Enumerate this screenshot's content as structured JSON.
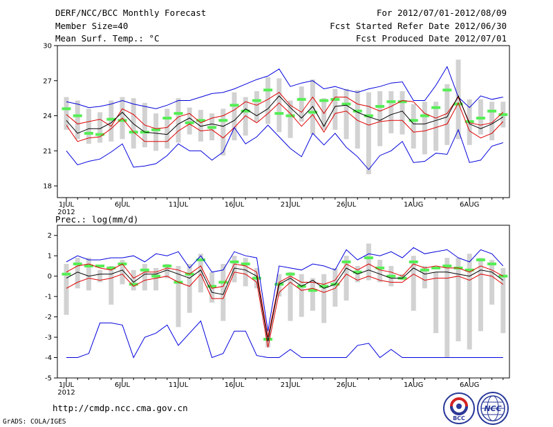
{
  "header": {
    "title": "DERF/NCC/BCC Monthly Forecast",
    "member_size": "Member Size=40",
    "variable": "Mean Surf. Temp.: °C",
    "period": "For 2012/07/01-2012/08/09",
    "started": "Fcst Started Refer Date 2012/06/30",
    "produced": "Fcst Produced Date 2012/07/01"
  },
  "footer": {
    "url": "http://cmdp.ncc.cma.gov.cn",
    "credit": "GrADS: COLA/IGES",
    "logo1_text": "BCC",
    "logo2_text": "NCC"
  },
  "colors": {
    "box": "#d2d2d2",
    "median": "#55ee55",
    "mean": "#000000",
    "inner": "#dd0000",
    "outer": "#0000dd"
  },
  "chart_data": [
    {
      "type": "line",
      "name": "temperature",
      "title": "Mean Surf. Temp.: °C",
      "xlabel": "",
      "ylabel": "",
      "x_tick_labels": [
        "1JUL",
        "6JUL",
        "11JUL",
        "16JUL",
        "21JUL",
        "26JUL",
        "1AUG",
        "6AUG"
      ],
      "x_tick_days": [
        1,
        6,
        11,
        16,
        21,
        26,
        32,
        37
      ],
      "x_sub_label": "2012",
      "ylim": [
        17,
        30
      ],
      "y_ticks": [
        18,
        21,
        24,
        27,
        30
      ],
      "days": [
        1,
        2,
        3,
        4,
        5,
        6,
        7,
        8,
        9,
        10,
        11,
        12,
        13,
        14,
        15,
        16,
        17,
        18,
        19,
        20,
        21,
        22,
        23,
        24,
        25,
        26,
        27,
        28,
        29,
        30,
        31,
        32,
        33,
        34,
        35,
        36,
        37,
        38,
        39,
        40
      ],
      "box_low": [
        22.8,
        22.0,
        21.6,
        21.7,
        21.8,
        22.0,
        21.2,
        21.3,
        21.0,
        21.2,
        21.7,
        22.4,
        21.8,
        21.9,
        20.6,
        21.9,
        22.3,
        23.5,
        23.3,
        22.6,
        22.1,
        23.5,
        22.4,
        22.8,
        22.8,
        22.0,
        21.2,
        19.0,
        21.4,
        22.5,
        22.4,
        21.2,
        20.7,
        21.0,
        21.5,
        22.0,
        21.5,
        22.4,
        21.9,
        23.0
      ],
      "box_high": [
        25.6,
        25.3,
        24.6,
        24.3,
        25.3,
        25.6,
        25.5,
        25.1,
        24.2,
        24.6,
        25.5,
        24.7,
        24.5,
        24.2,
        24.6,
        26.0,
        25.6,
        26.1,
        27.3,
        27.2,
        25.3,
        26.5,
        27.1,
        25.5,
        26.3,
        26.3,
        26.2,
        26.0,
        26.1,
        26.1,
        26.1,
        25.0,
        25.2,
        25.2,
        26.7,
        28.8,
        25.4,
        25.4,
        25.2,
        25.2
      ],
      "median": [
        24.6,
        24.0,
        22.5,
        22.4,
        23.7,
        23.6,
        22.6,
        22.6,
        22.8,
        23.8,
        24.2,
        23.4,
        23.6,
        23.0,
        23.6,
        24.9,
        24.4,
        25.3,
        26.2,
        24.2,
        24.0,
        25.4,
        24.3,
        25.3,
        25.4,
        25.0,
        24.4,
        24.0,
        24.8,
        25.2,
        25.2,
        23.6,
        24.0,
        24.7,
        26.2,
        25.0,
        23.5,
        23.8,
        24.4,
        24.1
      ],
      "series": [
        {
          "name": "max",
          "role": "outer",
          "values": [
            25.2,
            25.0,
            24.7,
            24.8,
            25.0,
            25.3,
            25.0,
            24.8,
            24.6,
            24.9,
            25.3,
            25.3,
            25.6,
            25.9,
            26.0,
            26.3,
            26.7,
            27.1,
            27.4,
            28.0,
            26.5,
            26.8,
            27.0,
            26.3,
            26.5,
            26.2,
            26.0,
            26.3,
            26.5,
            26.8,
            26.9,
            25.3,
            25.3,
            26.6,
            28.2,
            25.6,
            24.7,
            25.7,
            25.4,
            25.6
          ]
        },
        {
          "name": "p75",
          "role": "inner",
          "values": [
            24.1,
            23.3,
            23.5,
            23.7,
            23.1,
            24.6,
            24.1,
            23.2,
            22.9,
            23.0,
            23.9,
            24.2,
            23.4,
            23.8,
            24.0,
            24.5,
            25.2,
            24.9,
            25.4,
            26.0,
            24.9,
            24.3,
            25.6,
            24.2,
            25.6,
            25.6,
            25.0,
            24.8,
            24.4,
            24.8,
            25.3,
            25.2,
            24.2,
            23.8,
            24.2,
            25.6,
            23.4,
            23.2,
            23.4,
            24.3
          ]
        },
        {
          "name": "mean",
          "role": "mean",
          "values": [
            23.6,
            22.5,
            22.9,
            22.9,
            23.4,
            24.3,
            23.3,
            22.6,
            22.5,
            22.4,
            23.3,
            23.8,
            23.1,
            23.3,
            23.1,
            23.6,
            24.6,
            24.0,
            24.6,
            25.7,
            24.7,
            23.8,
            24.8,
            23.1,
            24.8,
            24.9,
            24.3,
            23.9,
            23.6,
            24.1,
            24.4,
            23.3,
            23.3,
            23.6,
            23.9,
            25.7,
            23.3,
            22.9,
            23.3,
            23.9
          ]
        },
        {
          "name": "p25",
          "role": "inner",
          "values": [
            23.2,
            21.8,
            22.1,
            22.2,
            22.9,
            23.8,
            22.6,
            21.8,
            21.8,
            21.8,
            22.7,
            23.3,
            22.7,
            22.8,
            22.1,
            23.0,
            24.0,
            23.4,
            24.2,
            25.1,
            24.2,
            23.1,
            24.1,
            22.6,
            24.2,
            24.4,
            23.6,
            23.2,
            23.5,
            23.6,
            23.6,
            22.6,
            22.7,
            23.0,
            23.3,
            25.1,
            22.7,
            22.1,
            22.5,
            23.5
          ]
        },
        {
          "name": "min",
          "role": "outer",
          "values": [
            21.0,
            19.8,
            20.1,
            20.3,
            20.9,
            21.6,
            19.6,
            19.7,
            19.9,
            20.6,
            21.6,
            21.0,
            21.0,
            20.2,
            20.9,
            23.0,
            21.6,
            22.2,
            23.2,
            22.2,
            21.2,
            20.5,
            22.5,
            21.5,
            22.5,
            21.3,
            20.5,
            19.4,
            20.6,
            21.0,
            21.8,
            20.0,
            20.1,
            20.8,
            20.7,
            22.8,
            20.0,
            20.2,
            21.4,
            21.7
          ]
        }
      ]
    },
    {
      "type": "line",
      "name": "precipitation",
      "title": "Prec.: log(mm/d)",
      "xlabel": "",
      "ylabel": "",
      "x_tick_labels": [
        "1JUL",
        "6JUL",
        "11JUL",
        "16JUL",
        "21JUL",
        "26JUL",
        "1AUG",
        "6AUG"
      ],
      "x_tick_days": [
        1,
        6,
        11,
        16,
        21,
        26,
        32,
        37
      ],
      "x_sub_label": "2012",
      "ylim": [
        -5,
        2.5
      ],
      "y_ticks": [
        -5,
        -4,
        -3,
        -2,
        -1,
        0,
        1,
        2
      ],
      "days": [
        1,
        2,
        3,
        4,
        5,
        6,
        7,
        8,
        9,
        10,
        11,
        12,
        13,
        14,
        15,
        16,
        17,
        18,
        19,
        20,
        21,
        22,
        23,
        24,
        25,
        26,
        27,
        28,
        29,
        30,
        31,
        32,
        33,
        34,
        35,
        36,
        37,
        38,
        39,
        40
      ],
      "box_low": [
        -1.9,
        -0.6,
        -0.7,
        -0.3,
        -1.4,
        -0.4,
        -0.7,
        -0.7,
        -0.7,
        -0.1,
        -2.5,
        -1.8,
        -0.8,
        -1.3,
        -2.2,
        -0.3,
        -0.5,
        -0.6,
        -3.5,
        -1.0,
        -2.2,
        -2.0,
        -1.7,
        -2.3,
        -1.5,
        -1.2,
        -0.3,
        -0.2,
        -0.3,
        -0.5,
        -0.2,
        -1.7,
        -0.6,
        -2.8,
        -4.0,
        -3.2,
        -3.6,
        -2.7,
        -1.4,
        -2.8
      ],
      "box_high": [
        0.6,
        0.9,
        0.9,
        0.3,
        0.5,
        0.8,
        0.3,
        0.6,
        0.4,
        0.6,
        0.5,
        0.6,
        1.1,
        0.2,
        0.6,
        1.0,
        0.9,
        0.4,
        -2.6,
        0.1,
        0.2,
        0.1,
        -0.1,
        0.1,
        0.4,
        1.0,
        0.5,
        1.6,
        0.8,
        0.5,
        0.1,
        1.0,
        0.5,
        0.2,
        0.9,
        0.9,
        1.1,
        0.9,
        0.8,
        0.4
      ],
      "median": [
        0.1,
        0.6,
        0.5,
        0.5,
        0.4,
        0.6,
        -0.4,
        0.3,
        0.0,
        0.5,
        -0.3,
        0.1,
        0.8,
        -0.5,
        -0.3,
        0.7,
        0.6,
        -0.1,
        -3.1,
        -0.4,
        0.1,
        -0.5,
        -0.7,
        -0.5,
        -0.4,
        0.7,
        0.2,
        0.9,
        0.4,
        0.0,
        -0.1,
        0.7,
        0.3,
        0.4,
        0.5,
        0.4,
        0.3,
        0.8,
        0.6,
        0.0
      ],
      "series": [
        {
          "name": "max",
          "role": "outer",
          "values": [
            0.7,
            1.0,
            0.8,
            0.8,
            0.9,
            0.9,
            1.0,
            0.7,
            1.1,
            1.0,
            1.2,
            0.4,
            1.0,
            0.2,
            0.3,
            1.2,
            1.0,
            0.9,
            -2.7,
            0.5,
            0.4,
            0.3,
            0.6,
            0.5,
            0.3,
            1.3,
            0.8,
            1.1,
            1.0,
            1.2,
            0.9,
            1.4,
            1.1,
            1.2,
            1.3,
            0.9,
            0.7,
            1.3,
            1.1,
            0.5
          ]
        },
        {
          "name": "p75",
          "role": "inner",
          "values": [
            0.2,
            0.5,
            0.6,
            0.4,
            0.3,
            0.6,
            -0.1,
            0.2,
            0.2,
            0.4,
            0.3,
            0.1,
            0.5,
            -0.6,
            -0.5,
            0.6,
            0.5,
            0.2,
            -3.0,
            -0.3,
            0.0,
            -0.3,
            -0.3,
            -0.4,
            -0.2,
            0.6,
            0.3,
            0.6,
            0.3,
            0.2,
            0.0,
            0.6,
            0.4,
            0.5,
            0.4,
            0.4,
            0.2,
            0.5,
            0.3,
            0.0
          ]
        },
        {
          "name": "mean",
          "role": "mean",
          "values": [
            -0.1,
            0.2,
            0.0,
            0.1,
            0.1,
            0.3,
            -0.3,
            0.1,
            0.1,
            0.3,
            0.1,
            -0.1,
            0.3,
            -0.8,
            -0.9,
            0.4,
            0.3,
            0.0,
            -3.2,
            -0.4,
            -0.1,
            -0.5,
            -0.2,
            -0.6,
            -0.4,
            0.4,
            0.1,
            0.3,
            0.1,
            -0.1,
            -0.1,
            0.4,
            0.1,
            0.2,
            0.2,
            0.1,
            0.0,
            0.3,
            0.2,
            -0.2
          ]
        },
        {
          "name": "p25",
          "role": "inner",
          "values": [
            -0.6,
            -0.3,
            -0.1,
            -0.2,
            -0.1,
            0.1,
            -0.5,
            -0.2,
            -0.1,
            0.0,
            -0.3,
            -0.5,
            0.1,
            -1.1,
            -1.1,
            0.2,
            0.1,
            -0.3,
            -3.5,
            -0.8,
            -0.3,
            -0.7,
            -0.6,
            -0.8,
            -0.6,
            0.1,
            -0.2,
            0.0,
            -0.2,
            -0.3,
            -0.3,
            0.1,
            -0.2,
            -0.1,
            -0.1,
            0.0,
            -0.2,
            0.1,
            0.0,
            -0.4
          ]
        },
        {
          "name": "min",
          "role": "outer",
          "values": [
            -4.0,
            -4.0,
            -3.8,
            -2.3,
            -2.3,
            -2.4,
            -4.0,
            -3.0,
            -2.8,
            -2.4,
            -3.4,
            -2.8,
            -2.2,
            -4.0,
            -3.8,
            -2.7,
            -2.7,
            -3.9,
            -4.0,
            -4.0,
            -3.6,
            -4.0,
            -4.0,
            -4.0,
            -4.0,
            -4.0,
            -3.4,
            -3.3,
            -4.0,
            -3.6,
            -4.0,
            -4.0,
            -4.0,
            -4.0,
            -4.0,
            -4.0,
            -4.0,
            -4.0,
            -4.0,
            -4.0
          ]
        }
      ]
    }
  ]
}
